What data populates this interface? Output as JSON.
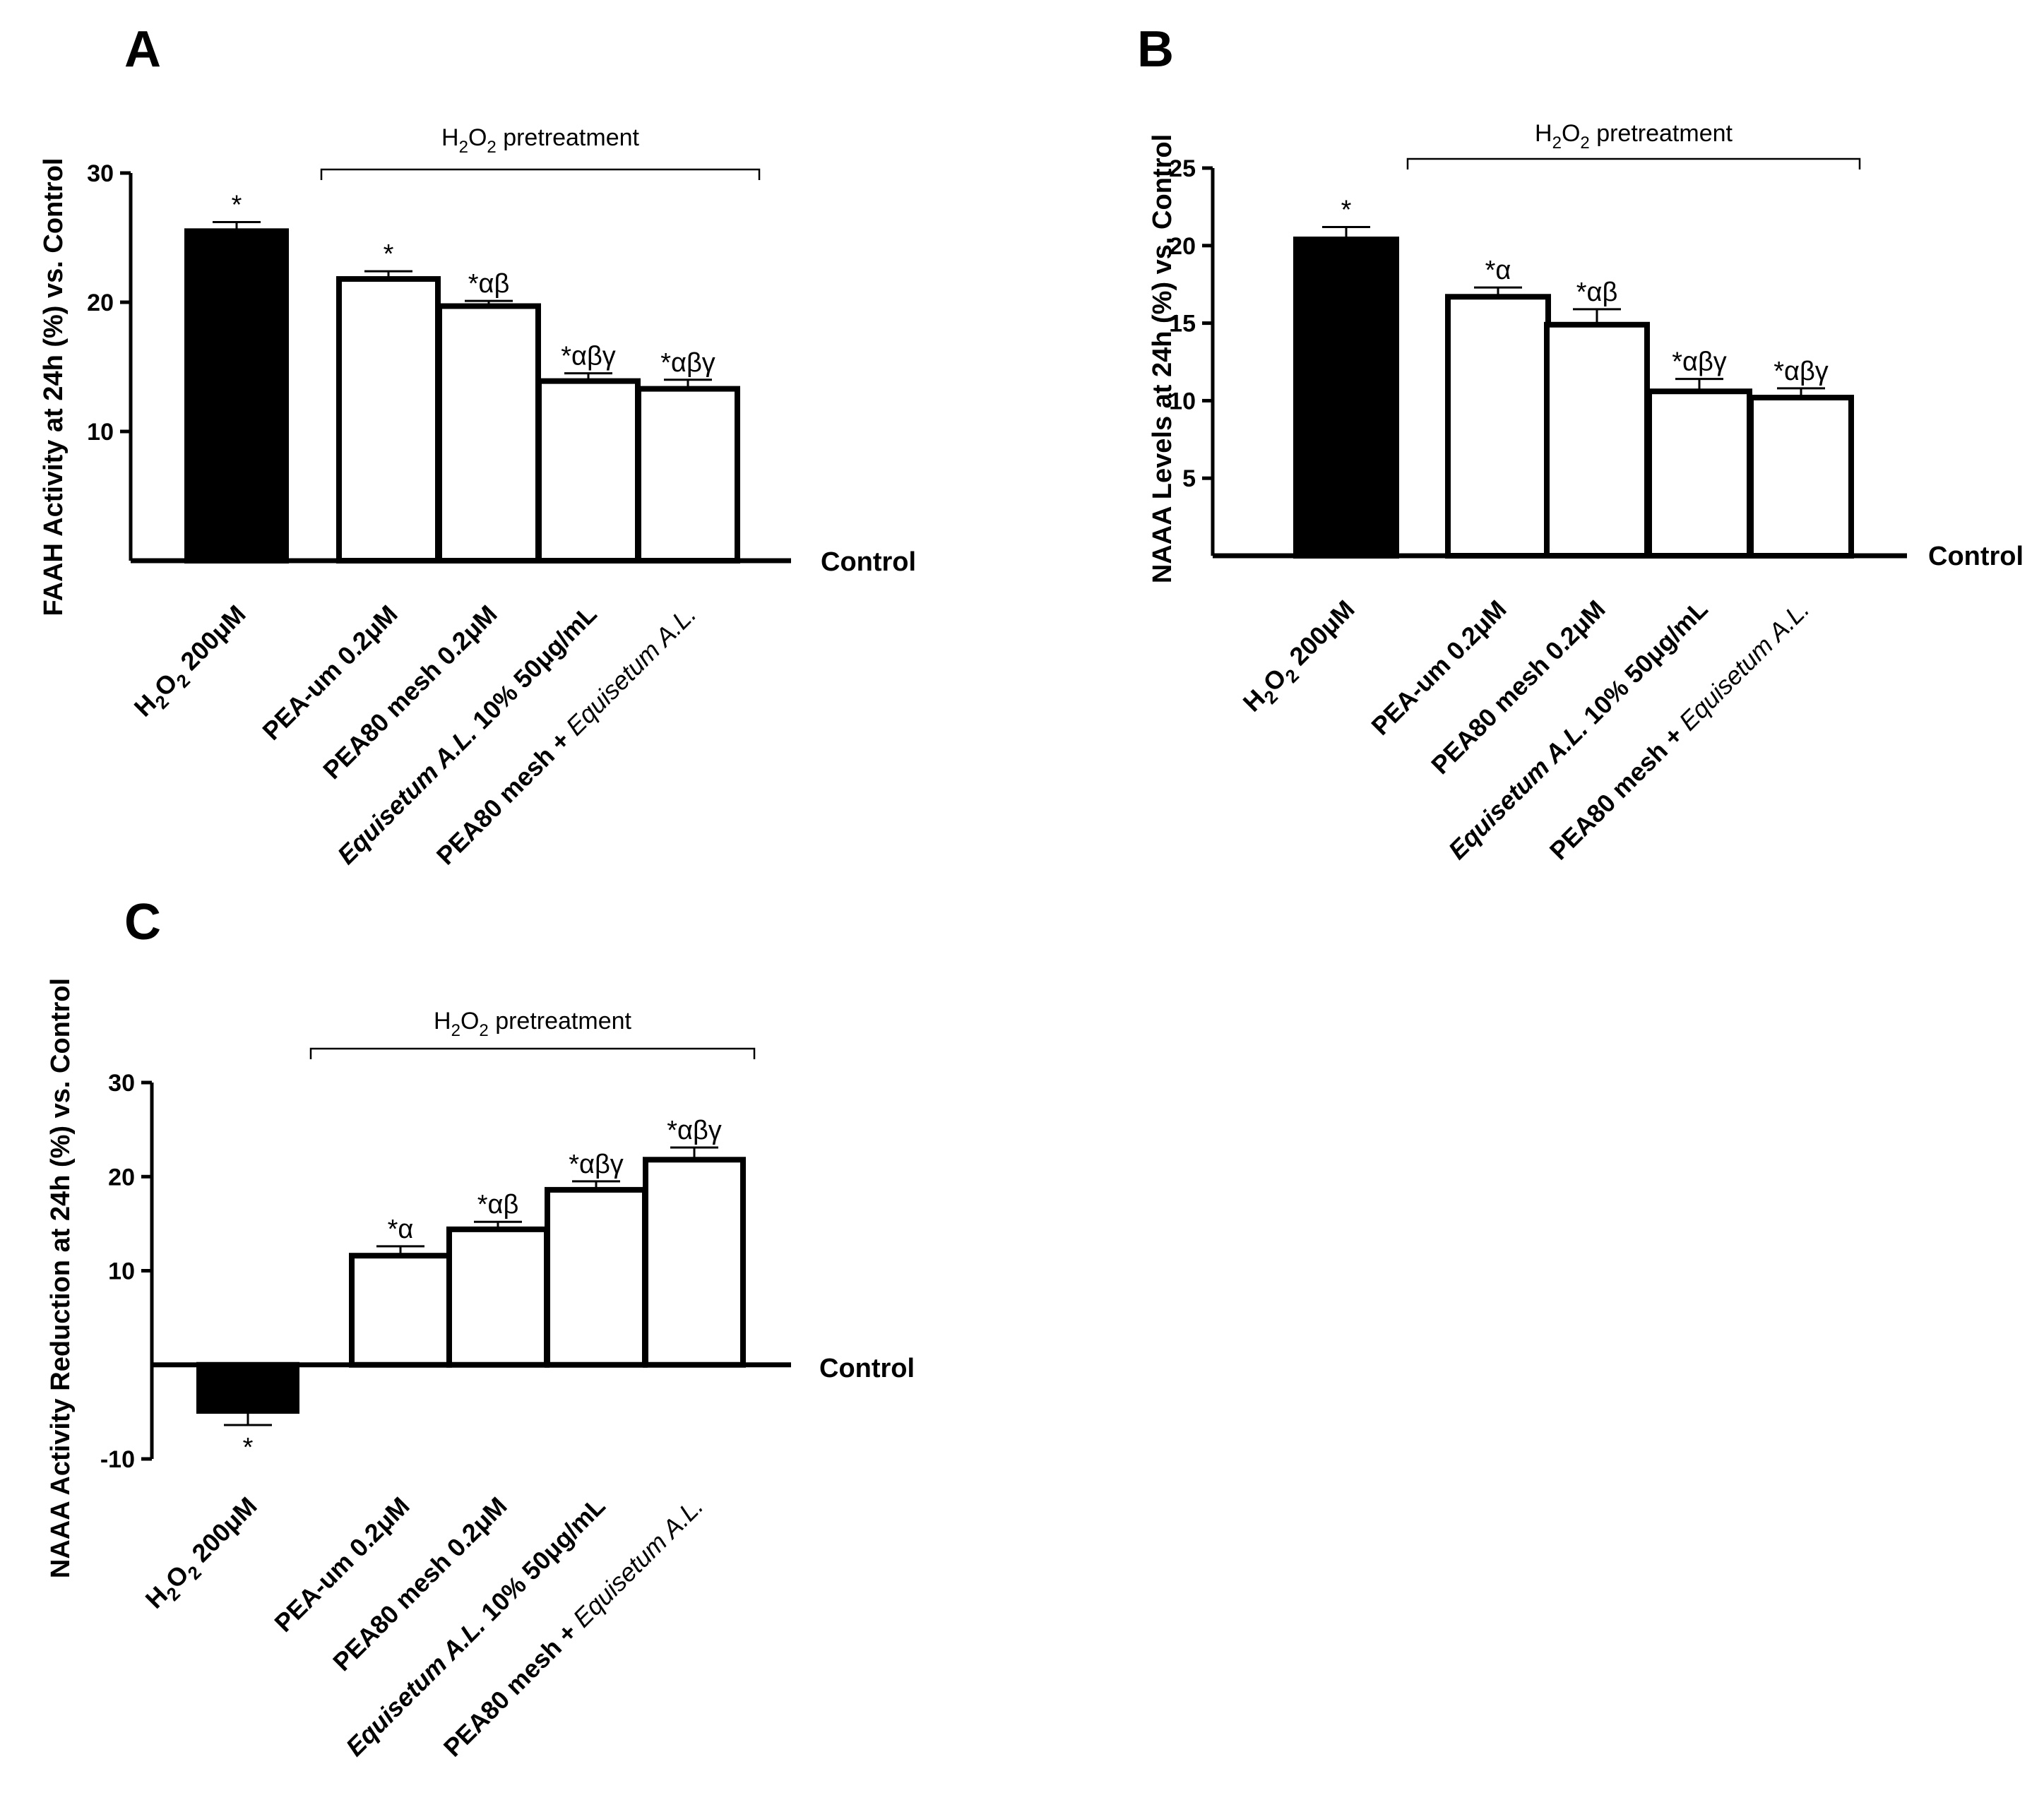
{
  "chart_data": [
    {
      "panel": "A",
      "type": "bar",
      "ylabel": "FAAH Activity at 24h (%) vs. Control",
      "ylim": [
        0,
        30
      ],
      "yticks": [
        10,
        20,
        30
      ],
      "baseline_label": "Control",
      "bracket_label": {
        "pre": "H",
        "s1": "2",
        "mid": "O",
        "s2": "2",
        "post": " pretreatment"
      },
      "categories": [
        {
          "b1": "H",
          "s1": "2",
          "b2": "O",
          "s2": "2",
          "b3": " 200μM"
        },
        {
          "b1": "PEA-um 0.2μM"
        },
        {
          "b1": "PEA80 mesh 0.2μM"
        },
        {
          "i1": "Equisetum A.L.",
          "b2": " 10% 50μg/mL"
        },
        {
          "b1": "PEA80 mesh + ",
          "ni": "Equisetum A.L."
        }
      ],
      "values": [
        25.5,
        21.8,
        19.7,
        13.9,
        13.3
      ],
      "errors": [
        0.7,
        0.6,
        0.4,
        0.6,
        0.7
      ],
      "annotations": [
        "*",
        "*",
        "*αβ",
        "*αβγ",
        "*αβγ"
      ],
      "fills": [
        "#000000",
        "#ffffff",
        "#ffffff",
        "#ffffff",
        "#ffffff"
      ]
    },
    {
      "panel": "B",
      "type": "bar",
      "ylabel": "NAAA Levels at 24h (%) vs. Control",
      "ylim": [
        0,
        25
      ],
      "yticks": [
        5,
        10,
        15,
        20,
        25
      ],
      "baseline_label": "Control",
      "bracket_label": {
        "pre": "H",
        "s1": "2",
        "mid": "O",
        "s2": "2",
        "post": " pretreatment"
      },
      "categories": [
        {
          "b1": "H",
          "s1": "2",
          "b2": "O",
          "s2": "2",
          "b3": " 200μM"
        },
        {
          "b1": "PEA-um 0.2μM"
        },
        {
          "b1": "PEA80 mesh 0.2μM"
        },
        {
          "i1": "Equisetum A.L.",
          "b2": " 10% 50μg/mL"
        },
        {
          "b1": "PEA80 mesh + ",
          "ni": "Equisetum A.L."
        }
      ],
      "values": [
        20.4,
        16.7,
        14.9,
        10.6,
        10.2
      ],
      "errors": [
        0.8,
        0.6,
        1.0,
        0.8,
        0.6
      ],
      "annotations": [
        "*",
        "*α",
        "*αβ",
        "*αβγ",
        "*αβγ"
      ],
      "fills": [
        "#000000",
        "#ffffff",
        "#ffffff",
        "#ffffff",
        "#ffffff"
      ]
    },
    {
      "panel": "C",
      "type": "bar",
      "ylabel": "NAAA Activity Reduction at 24h (%) vs. Control",
      "ylim": [
        -10,
        30
      ],
      "yticks": [
        -10,
        10,
        20,
        30
      ],
      "baseline_label": "Control",
      "bracket_label": {
        "pre": "H",
        "s1": "2",
        "mid": "O",
        "s2": "2",
        "post": " pretreatment"
      },
      "categories": [
        {
          "b1": "H",
          "s1": "2",
          "b2": "O",
          "s2": "2",
          "b3": " 200μM"
        },
        {
          "b1": "PEA-um 0.2μM"
        },
        {
          "b1": "PEA80 mesh 0.2μM"
        },
        {
          "i1": "Equisetum A.L.",
          "b2": " 10% 50μg/mL"
        },
        {
          "b1": "PEA80 mesh + ",
          "ni": "Equisetum A.L."
        }
      ],
      "values": [
        -4.9,
        11.6,
        14.4,
        18.6,
        21.8
      ],
      "errors": [
        1.5,
        1.0,
        0.8,
        0.9,
        1.3
      ],
      "annotations": [
        "*",
        "*α",
        "*αβ",
        "*αβγ",
        "*αβγ"
      ],
      "fills": [
        "#000000",
        "#ffffff",
        "#ffffff",
        "#ffffff",
        "#ffffff"
      ]
    }
  ]
}
